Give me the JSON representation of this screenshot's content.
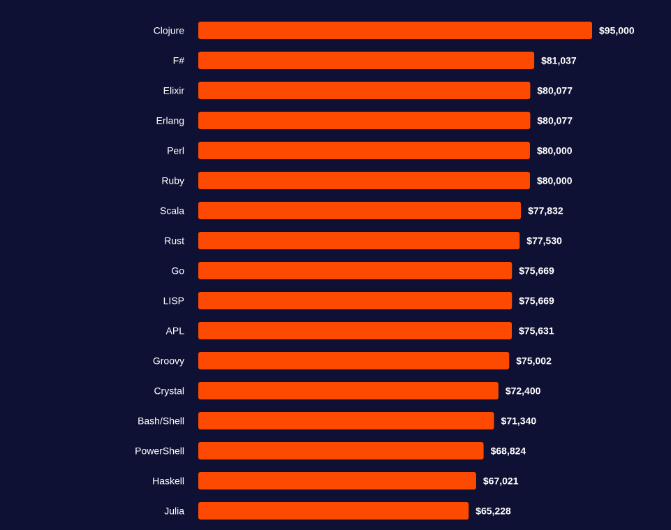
{
  "chart_data": {
    "type": "bar",
    "orientation": "horizontal",
    "categories": [
      "Clojure",
      "F#",
      "Elixir",
      "Erlang",
      "Perl",
      "Ruby",
      "Scala",
      "Rust",
      "Go",
      "LISP",
      "APL",
      "Groovy",
      "Crystal",
      "Bash/Shell",
      "PowerShell",
      "Haskell",
      "Julia"
    ],
    "values": [
      95000,
      81037,
      80077,
      80077,
      80000,
      80000,
      77832,
      77530,
      75669,
      75669,
      75631,
      75002,
      72400,
      71340,
      68824,
      67021,
      65228
    ],
    "value_labels": [
      "$95,000",
      "$81,037",
      "$80,077",
      "$80,077",
      "$80,000",
      "$80,000",
      "$77,832",
      "$77,530",
      "$75,669",
      "$75,669",
      "$75,631",
      "$75,002",
      "$72,400",
      "$71,340",
      "$68,824",
      "$67,021",
      "$65,228"
    ],
    "title": "",
    "xlabel": "",
    "ylabel": "",
    "xlim": [
      0,
      95000
    ],
    "grid": false,
    "legend": "none",
    "colors": {
      "background": "#0e1133",
      "bar": "#fe4a00",
      "label": "#ffffff"
    }
  }
}
